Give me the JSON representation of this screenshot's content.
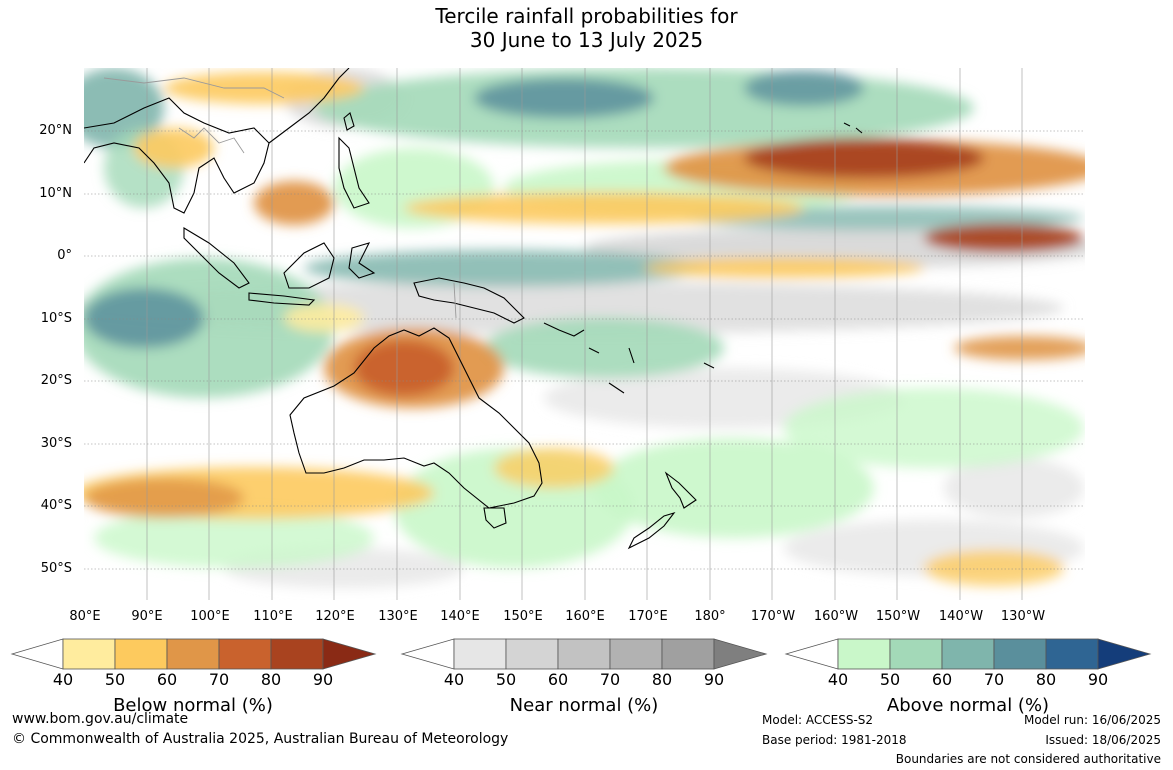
{
  "title_line1": "Tercile rainfall probabilities for",
  "title_line2": "30 June to 13 July 2025",
  "lat_labels": [
    "20°N",
    "10°N",
    "0°",
    "10°S",
    "20°S",
    "30°S",
    "40°S",
    "50°S"
  ],
  "lon_labels": [
    "80°E",
    "90°E",
    "100°E",
    "110°E",
    "120°E",
    "130°E",
    "140°E",
    "150°E",
    "160°E",
    "170°E",
    "180°",
    "170°W",
    "160°W",
    "150°W",
    "140°W",
    "130°W"
  ],
  "legends": {
    "below": {
      "title": "Below normal (%)",
      "ticks": [
        "40",
        "50",
        "60",
        "70",
        "80",
        "90"
      ],
      "colors": [
        "#ffffff",
        "#ffec9e",
        "#fdca5e",
        "#e09648",
        "#c9622d",
        "#a9431f",
        "#8a2a15"
      ]
    },
    "near": {
      "title": "Near normal (%)",
      "ticks": [
        "40",
        "50",
        "60",
        "70",
        "80",
        "90"
      ],
      "colors": [
        "#ffffff",
        "#e6e6e6",
        "#d4d4d4",
        "#c2c2c2",
        "#b2b2b2",
        "#a0a0a0",
        "#7f7f7f"
      ]
    },
    "above": {
      "title": "Above normal (%)",
      "ticks": [
        "40",
        "50",
        "60",
        "70",
        "80",
        "90"
      ],
      "colors": [
        "#ffffff",
        "#c9f7c9",
        "#a3d9b8",
        "#7fb5ac",
        "#5a8f9c",
        "#2f6593",
        "#143d7a"
      ]
    }
  },
  "footer": {
    "website": "www.bom.gov.au/climate",
    "copyright": "© Commonwealth of Australia 2025, Australian Bureau of Meteorology",
    "model": "Model: ACCESS-S2",
    "base_period": "Base period: 1981-2018",
    "model_run": "Model run: 16/06/2025",
    "issued": "Issued: 18/06/2025",
    "disclaimer": "Boundaries are not considered authoritative"
  }
}
